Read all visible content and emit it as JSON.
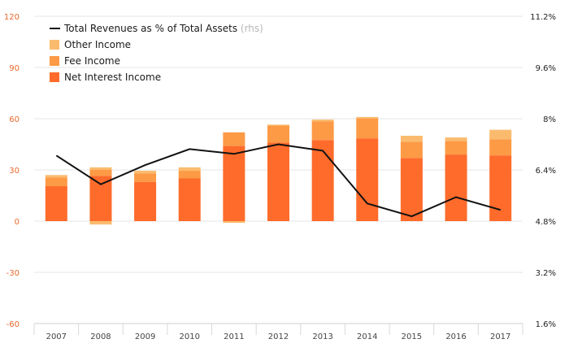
{
  "chart_data": {
    "type": "bar",
    "categories": [
      "2007",
      "2008",
      "2009",
      "2010",
      "2011",
      "2012",
      "2013",
      "2014",
      "2015",
      "2016",
      "2017"
    ],
    "series": [
      {
        "name": "Net Interest Income",
        "values": [
          20.5,
          26.5,
          23,
          25,
          44,
          46,
          47.5,
          48.5,
          37,
          39,
          38.5
        ],
        "color": "#fe6b2b"
      },
      {
        "name": "Fee Income",
        "values": [
          5,
          3.5,
          5,
          4.5,
          8,
          10,
          11,
          11.5,
          9.5,
          8,
          9.5
        ],
        "color": "#fd9a45"
      },
      {
        "name": "Other Income",
        "values": [
          1.5,
          1.5,
          1.5,
          2,
          0,
          0.5,
          1,
          1,
          3.5,
          2,
          5.5
        ],
        "color": "#fbbb6e"
      },
      {
        "name": "Other Income (negative)",
        "values": [
          0,
          -2,
          0,
          0,
          -1,
          0,
          0,
          0,
          0,
          0,
          0
        ],
        "color": "#fbbb6e"
      }
    ],
    "line": {
      "name": "Total Revenues as % of Total Assets",
      "suffix": "(rhs)",
      "values": [
        6.85,
        5.95,
        6.55,
        7.05,
        6.9,
        7.2,
        7.0,
        5.35,
        4.95,
        5.55,
        5.15
      ],
      "color": "#111111"
    },
    "left_axis": {
      "ylim": [
        -60,
        120
      ],
      "ticks": [
        "-60",
        "-30",
        "0",
        "30",
        "60",
        "90",
        "120"
      ]
    },
    "right_axis": {
      "ylim": [
        1.6,
        11.2
      ],
      "ticks": [
        "1.6%",
        "3.2%",
        "4.8%",
        "6.4%",
        "8%",
        "9.6%",
        "11.2%"
      ]
    },
    "grid": true,
    "legend_position": "top-left",
    "legend": [
      {
        "label": "Total Revenues as % of Total Assets",
        "suffix": "(rhs)",
        "kind": "line",
        "color": "#111111"
      },
      {
        "label": "Other Income",
        "kind": "box",
        "color": "#fbbb6e"
      },
      {
        "label": "Fee Income",
        "kind": "box",
        "color": "#fd9a45"
      },
      {
        "label": "Net Interest Income",
        "kind": "box",
        "color": "#fe6b2b"
      }
    ]
  }
}
